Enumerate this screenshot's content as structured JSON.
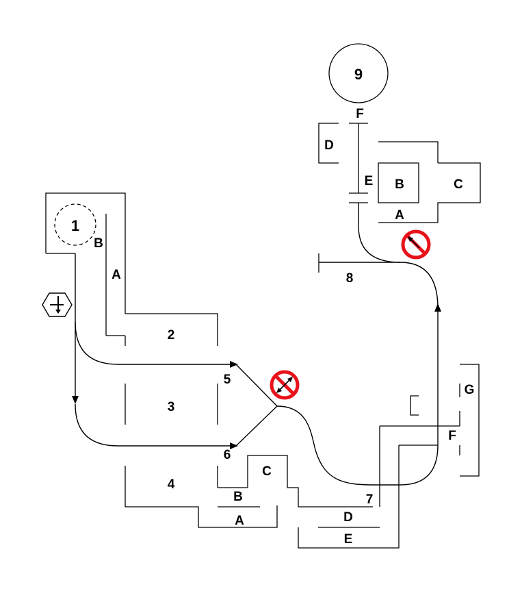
{
  "nodes": {
    "start": "1",
    "end": "9",
    "n2": "2",
    "n3": "3",
    "n4": "4",
    "n5": "5",
    "n6": "6",
    "n7": "7",
    "n8": "8"
  },
  "letters": {
    "start_b": "B",
    "start_a": "A",
    "mid_c": "C",
    "mid_b": "B",
    "mid_a": "A",
    "bot_d": "D",
    "bot_e": "E",
    "right_g": "G",
    "right_f": "F",
    "top_f": "F",
    "top_d": "D",
    "top_e": "E",
    "top_b": "B",
    "top_c": "C",
    "top_a": "A"
  },
  "colors": {
    "line": "#000000",
    "prohibit": "#e8121a"
  },
  "icons": {
    "direction": "direction-hexagon-icon",
    "no_entry_1": "no-entry-icon",
    "no_entry_2": "no-entry-icon"
  }
}
